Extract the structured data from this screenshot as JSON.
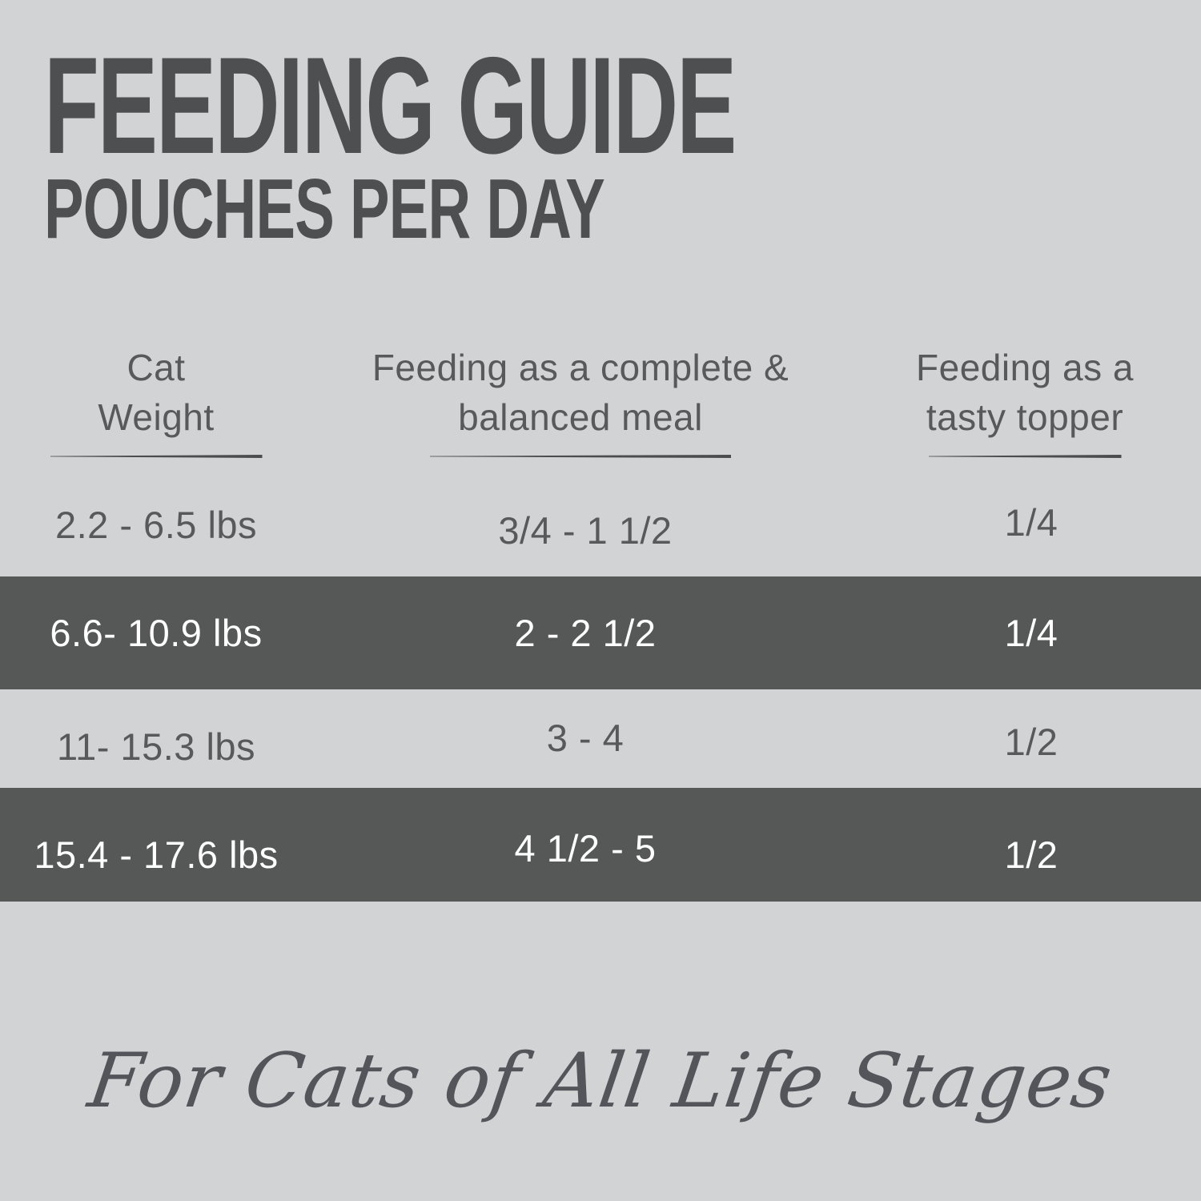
{
  "title": {
    "line1": "FEEDING GUIDE",
    "line2": "POUCHES PER DAY"
  },
  "table": {
    "columns": [
      {
        "line1": "Cat",
        "line2": "Weight"
      },
      {
        "line1": "Feeding as a complete &",
        "line2": "balanced meal"
      },
      {
        "line1": "Feeding as a",
        "line2": "tasty topper"
      }
    ],
    "rows": [
      {
        "weight": "2.2 - 6.5 lbs",
        "meal": "3/4 - 1 1/2",
        "topper": "1/4",
        "highlighted": false
      },
      {
        "weight": "6.6- 10.9 lbs",
        "meal": "2 - 2 1/2",
        "topper": "1/4",
        "highlighted": true
      },
      {
        "weight": "11- 15.3 lbs",
        "meal": "3 - 4",
        "topper": "1/2",
        "highlighted": false
      },
      {
        "weight": "15.4 - 17.6 lbs",
        "meal": "4 1/2 - 5",
        "topper": "1/2",
        "highlighted": true
      }
    ]
  },
  "footer": {
    "tagline": "For Cats of All Life Stages"
  },
  "colors": {
    "background": "#d2d3d5",
    "band": "#565757",
    "text": "#58595b",
    "title": "#4e4f51",
    "band_text": "#ffffff",
    "rule": "#4b4c4e"
  },
  "chart_data": {
    "type": "table",
    "title": "FEEDING GUIDE",
    "subtitle": "POUCHES PER DAY",
    "columns": [
      "Cat Weight",
      "Feeding as a complete & balanced meal",
      "Feeding as a tasty topper"
    ],
    "rows": [
      [
        "2.2 - 6.5 lbs",
        "3/4 - 1 1/2",
        "1/4"
      ],
      [
        "6.6- 10.9 lbs",
        "2 - 2 1/2",
        "1/4"
      ],
      [
        "11- 15.3 lbs",
        "3 - 4",
        "1/2"
      ],
      [
        "15.4 - 17.6 lbs",
        "4 1/2 - 5",
        "1/2"
      ]
    ],
    "highlighted_rows": [
      1,
      3
    ],
    "note": "For Cats of All Life Stages"
  }
}
